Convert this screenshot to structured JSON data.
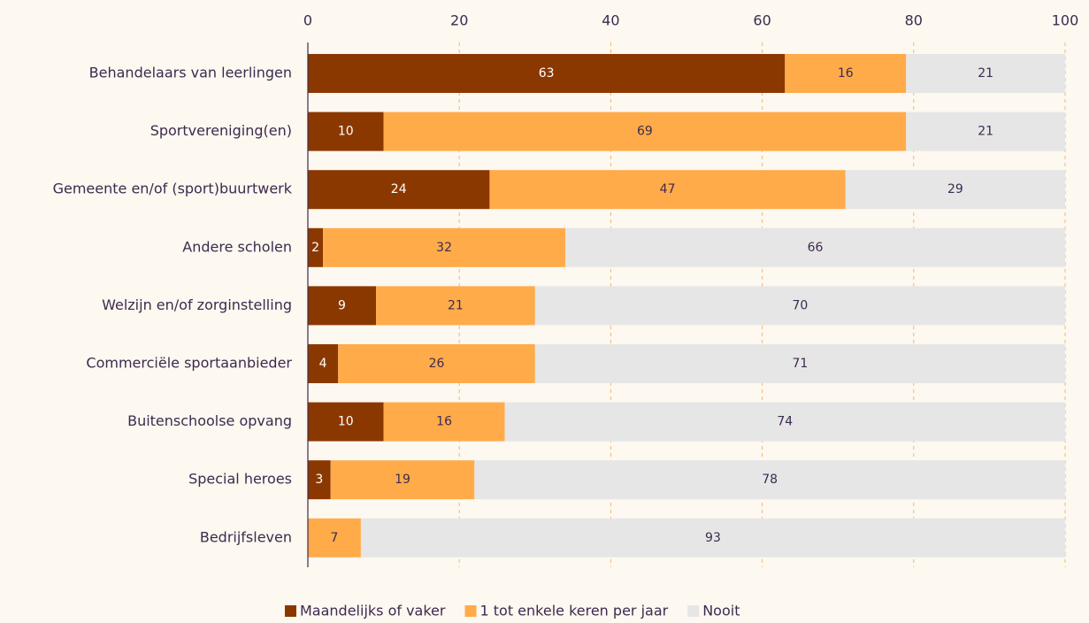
{
  "chart_data": {
    "type": "stacked-bar-horizontal",
    "categories": [
      "Behandelaars van leerlingen",
      "Sportvereniging(en)",
      "Gemeente en/of (sport)buurtwerk",
      "Andere scholen",
      "Welzijn en/of zorginstelling",
      "Commerciële sportaanbieder",
      "Buitenschoolse opvang",
      "Special heroes",
      "Bedrijfsleven"
    ],
    "series": [
      {
        "name": "Maandelijks of vaker",
        "color": "#8b3800",
        "values": [
          63,
          10,
          24,
          2,
          9,
          4,
          10,
          3,
          null
        ]
      },
      {
        "name": "1 tot enkele keren per jaar",
        "color": "#ffab4a",
        "values": [
          16,
          69,
          47,
          32,
          21,
          26,
          16,
          19,
          7
        ]
      },
      {
        "name": "Nooit",
        "color": "#e6e6e6",
        "values": [
          21,
          21,
          29,
          66,
          70,
          71,
          74,
          78,
          93
        ]
      }
    ],
    "xlim": [
      0,
      100
    ],
    "xticks": [
      0,
      20,
      40,
      60,
      80,
      100
    ],
    "grid": true,
    "legend": "bottom"
  }
}
